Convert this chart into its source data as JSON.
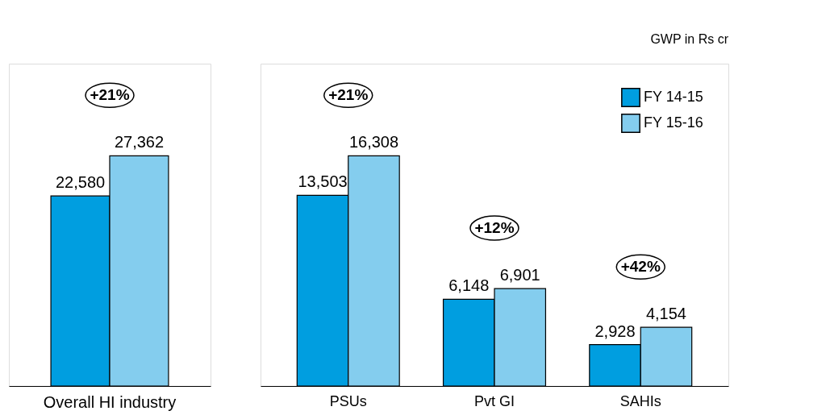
{
  "chart_data": [
    {
      "type": "bar",
      "categories": [
        "Overall HI industry"
      ],
      "tick_labels": "x",
      "grid": false,
      "series": [
        {
          "color": "#009ee0",
          "values": [
            22580
          ],
          "value_labels": [
            "22,580"
          ]
        },
        {
          "color": "#84cdee",
          "values": [
            27362
          ],
          "value_labels": [
            "27,362"
          ]
        }
      ],
      "annotations": [
        "+21%"
      ]
    },
    {
      "type": "bar",
      "categories": [
        "PSUs",
        "Pvt GI",
        "SAHIs"
      ],
      "tick_labels": "x",
      "grid": false,
      "legend": "top right",
      "series": [
        {
          "name": "FY 14-15",
          "color": "#009ee0",
          "values": [
            13503,
            6148,
            2928
          ],
          "value_labels": [
            "13,503",
            "6,148",
            "2,928"
          ]
        },
        {
          "name": "FY 15-16",
          "color": "#84cdee",
          "values": [
            16308,
            6901,
            4154
          ],
          "value_labels": [
            "16,308",
            "6,901",
            "4,154"
          ]
        }
      ],
      "annotations": [
        "GWP in Rs cr",
        "+21%",
        "+12%",
        "+42%"
      ]
    }
  ]
}
